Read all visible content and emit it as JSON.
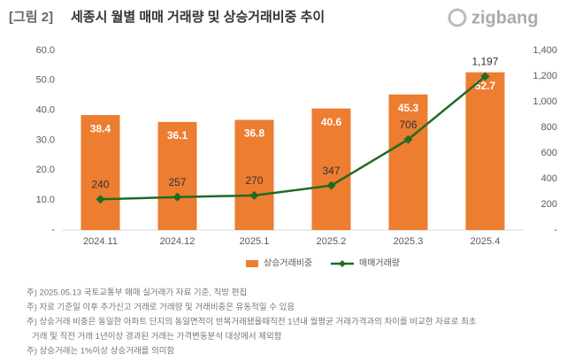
{
  "header": {
    "figure_label": "[그림 2]",
    "title": "세종시 월별 매매 거래량 및 상승거래비중 추이",
    "logo": "zigbang"
  },
  "chart_data": {
    "type": "combo",
    "categories": [
      "2024.11",
      "2024.12",
      "2025.1",
      "2025.2",
      "2025.3",
      "2025.4"
    ],
    "series": [
      {
        "name": "상승거래비중",
        "type": "bar",
        "axis": "y",
        "color": "#ed7d31",
        "values": [
          38.4,
          36.1,
          36.8,
          40.6,
          45.3,
          52.7
        ]
      },
      {
        "name": "매매거래량",
        "type": "line",
        "axis": "y2",
        "color": "#1f6b23",
        "values": [
          240,
          257,
          270,
          347,
          706,
          1197
        ],
        "value_labels": [
          "240",
          "257",
          "270",
          "347",
          "706",
          "1,197"
        ]
      }
    ],
    "ylim": [
      0,
      60
    ],
    "yticks": [
      {
        "value": 0,
        "label": "-"
      },
      {
        "value": 10,
        "label": "10.0"
      },
      {
        "value": 20,
        "label": "20.0"
      },
      {
        "value": 30,
        "label": "30.0"
      },
      {
        "value": 40,
        "label": "40.0"
      },
      {
        "value": 50,
        "label": "50.0"
      },
      {
        "value": 60,
        "label": "60.0"
      }
    ],
    "y2lim": [
      0,
      1400
    ],
    "y2ticks": [
      {
        "value": 0,
        "label": "-"
      },
      200,
      400,
      600,
      800,
      {
        "value": 1000,
        "label": "1,000"
      },
      {
        "value": 1200,
        "label": "1,200"
      },
      {
        "value": 1400,
        "label": "1,400"
      }
    ],
    "grid": false,
    "legend": "bottom"
  },
  "notes": [
    "주) 2025.05.13 국토교통부 매매 실거래가 자료 기준, 직방 편집",
    "주) 자료 기준일 이후 추가신고 거래로 거래량 및 거래비중은 유동적일 수 있음",
    "주) 상승거래 비중은 동일한 아파트 단지의 동일면적이 반복거래됐을때직전 1년내 월평균 거래가격과의 차이를 비교한 자료로 최초",
    "거래 및 직전 거래 1년이상 경과된 거래는 가격변동분석 대상에서 제외함",
    "주) 상승거래는 1%이상 상승거래를 의미함"
  ]
}
